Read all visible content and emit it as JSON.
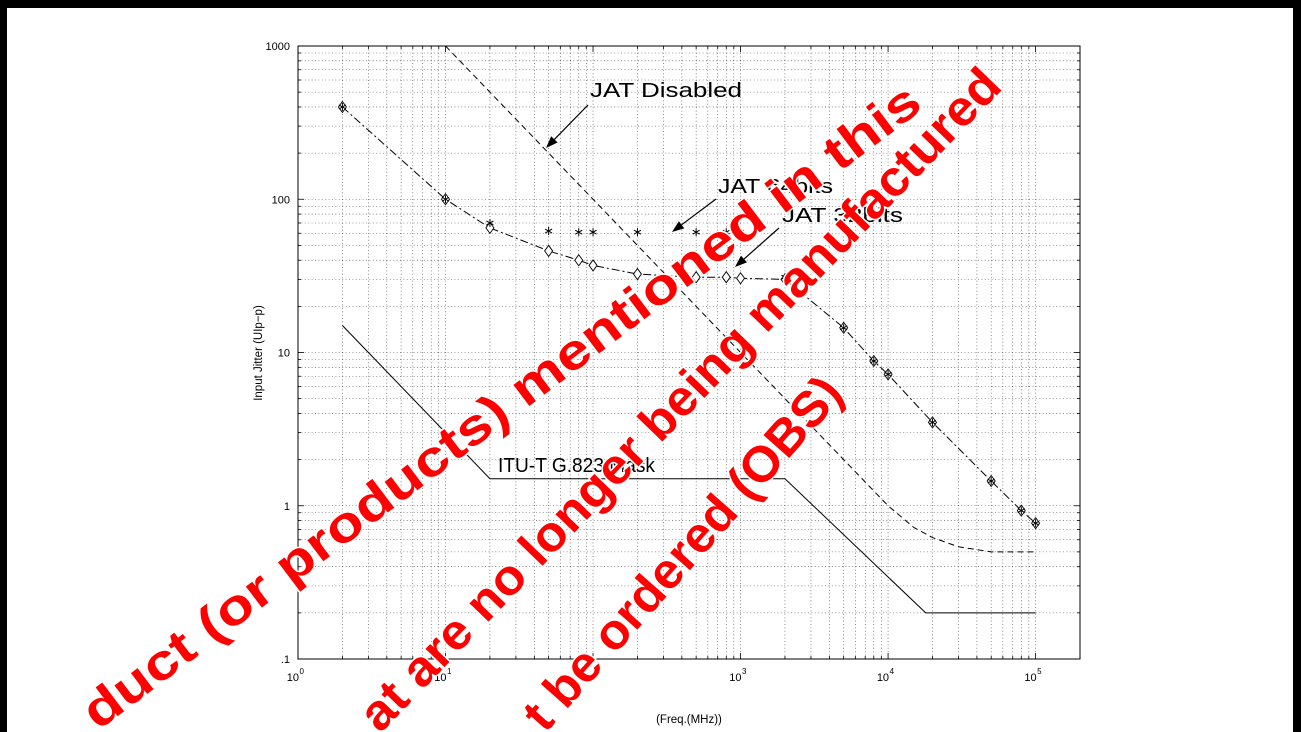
{
  "colors": {
    "ink": "#000000",
    "frame": "#000000",
    "background": "#ffffff"
  },
  "chart_data": {
    "type": "line",
    "xscale": "log",
    "yscale": "log",
    "xlim": [
      1,
      200000
    ],
    "ylim": [
      0.1,
      1000
    ],
    "xlabel": "(Freq.(MHz))",
    "ylabel": "Input Jitter (UIp−p)",
    "grid": true,
    "legend": "none",
    "x_ticks": [
      1,
      10,
      100,
      1000,
      10000,
      100000
    ],
    "x_tick_labels": [
      {
        "base": "10",
        "exp": "0"
      },
      {
        "base": "10",
        "exp": "1"
      },
      {
        "base": "10",
        "exp": "2"
      },
      {
        "base": "10",
        "exp": "3"
      },
      {
        "base": "10",
        "exp": "4"
      },
      {
        "base": "10",
        "exp": "5"
      }
    ],
    "y_ticks": [
      1000,
      100,
      10,
      1,
      0.1
    ],
    "y_tick_labels": [
      "1000",
      "100",
      "10",
      "1",
      ".1"
    ],
    "series": [
      {
        "name": "ITU-T G.823 Mask",
        "style": "solid",
        "marker": "none",
        "x": [
          2,
          20,
          2000,
          18000,
          100000
        ],
        "y": [
          15,
          1.5,
          1.5,
          0.2,
          0.2
        ]
      },
      {
        "name": "JAT Disabled",
        "style": "dashed",
        "marker": "none",
        "x": [
          10,
          100,
          1000,
          5000,
          10000,
          15000,
          20000,
          30000,
          50000,
          100000
        ],
        "y": [
          1000,
          100,
          10,
          2,
          1,
          0.72,
          0.62,
          0.54,
          0.5,
          0.5
        ]
      },
      {
        "name": "JAT 64bits",
        "style": "none",
        "marker": "asterisk",
        "x": [
          2,
          10,
          20,
          50,
          80,
          100,
          200,
          500,
          800,
          1000,
          2000,
          5000,
          8000,
          10000,
          20000,
          50000,
          80000,
          100000
        ],
        "y": [
          400,
          100,
          70,
          62,
          61,
          61,
          61,
          61,
          61,
          61,
          31,
          14.5,
          8.8,
          7.2,
          3.5,
          1.45,
          0.93,
          0.77
        ]
      },
      {
        "name": "JAT 32bits",
        "style": "dash-dot",
        "marker": "diamond",
        "x": [
          2,
          10,
          20,
          50,
          80,
          100,
          200,
          500,
          800,
          1000,
          2000,
          5000,
          8000,
          10000,
          20000,
          50000,
          80000,
          100000
        ],
        "y": [
          400,
          100,
          65,
          46,
          40,
          37,
          32.5,
          31,
          31,
          30.5,
          30,
          14.5,
          8.8,
          7.2,
          3.5,
          1.45,
          0.93,
          0.77
        ]
      }
    ]
  },
  "watermark": {
    "color": "#ff0000",
    "lines": [
      "duct (or products) mentioned in this",
      "at are no longer being manufactured",
      "t be ordered (OBS)"
    ]
  }
}
